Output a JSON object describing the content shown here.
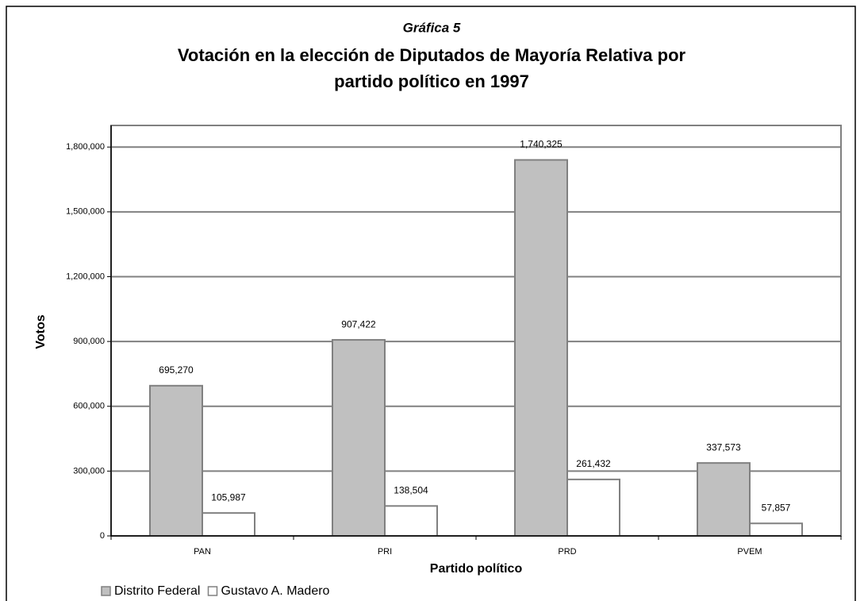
{
  "chart_data": {
    "type": "bar",
    "caption": "Gráfica 5",
    "title": [
      "Votación en la elección de Diputados de Mayoría Relativa por",
      "partido político en 1997"
    ],
    "x_label": "Partido político",
    "y_label": "Votos",
    "categories": [
      "PAN",
      "PRI",
      "PRD",
      "PVEM"
    ],
    "series": [
      {
        "name": "Distrito Federal",
        "color": "#c0c0c0",
        "values": [
          695270,
          907422,
          1740325,
          337573
        ],
        "value_labels": [
          "695,270",
          "907,422",
          "1,740,325",
          "337,573"
        ]
      },
      {
        "name": "Gustavo A. Madero",
        "color": "#ffffff",
        "values": [
          105987,
          138504,
          261432,
          57857
        ],
        "value_labels": [
          "105,987",
          "138,504",
          "261,432",
          "57,857"
        ]
      }
    ],
    "ylim": [
      0,
      1900000
    ],
    "yticks": [
      0,
      {
        "value": 300000,
        "label": "300,000"
      },
      {
        "value": 600000,
        "label": "600,000"
      },
      {
        "value": 900000,
        "label": "900,000"
      },
      {
        "value": 1200000,
        "label": "1,200,000"
      },
      {
        "value": 1500000,
        "label": "1,500,000"
      },
      {
        "value": 1800000,
        "label": "1,800,000"
      }
    ],
    "grid": true,
    "legend": "bottom-left"
  }
}
